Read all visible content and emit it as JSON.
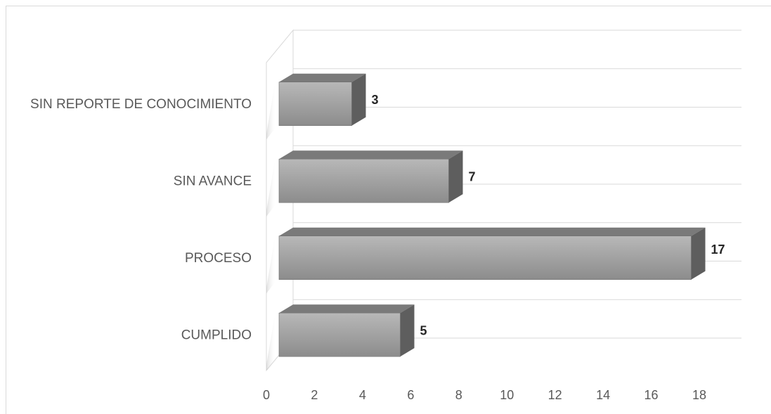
{
  "chart_data": {
    "type": "bar",
    "orientation": "horizontal",
    "style": "3d",
    "categories": [
      "CUMPLIDO",
      "PROCESO",
      "SIN AVANCE",
      "SIN REPORTE DE CONOCIMIENTO"
    ],
    "values": [
      5,
      17,
      7,
      3
    ],
    "data_labels": [
      "5",
      "17",
      "7",
      "3"
    ],
    "title": "",
    "xlabel": "",
    "ylabel": "",
    "xlim": [
      0,
      18
    ],
    "xticks": [
      "0",
      "2",
      "4",
      "6",
      "8",
      "10",
      "12",
      "14",
      "16",
      "18"
    ],
    "grid": true,
    "legend": "none",
    "colors": {
      "bar_front_light": "#b8b8b8",
      "bar_front_dark": "#8c8c8c",
      "bar_top": "#7a7a7a",
      "bar_side": "#5e5e5e",
      "gridline": "#d9d9d9"
    }
  }
}
